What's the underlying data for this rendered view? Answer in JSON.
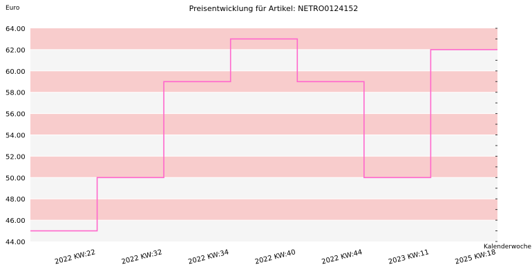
{
  "chart_data": {
    "type": "line",
    "step": true,
    "title": "Preisentwicklung für Artikel: NETRO0124152",
    "ylabel": "Euro",
    "xlabel": "Kalenderwoche",
    "ylim": [
      44.0,
      64.0
    ],
    "yticks": [
      "44.00",
      "46.00",
      "48.00",
      "50.00",
      "52.00",
      "54.00",
      "56.00",
      "58.00",
      "60.00",
      "62.00",
      "64.00"
    ],
    "categories": [
      "2022 KW:22",
      "2022 KW:32",
      "2022 KW:34",
      "2022 KW:40",
      "2022 KW:44",
      "2023 KW:11",
      "2025 KW:18"
    ],
    "series": [
      {
        "values": [
          45,
          50,
          59,
          63,
          59,
          50,
          62
        ]
      }
    ],
    "colors": {
      "line": "#ff66cc",
      "band_pink": "#f8cccc",
      "band_light": "#f5f5f5",
      "tick": "#333333"
    },
    "grid": true,
    "legend": "none"
  }
}
